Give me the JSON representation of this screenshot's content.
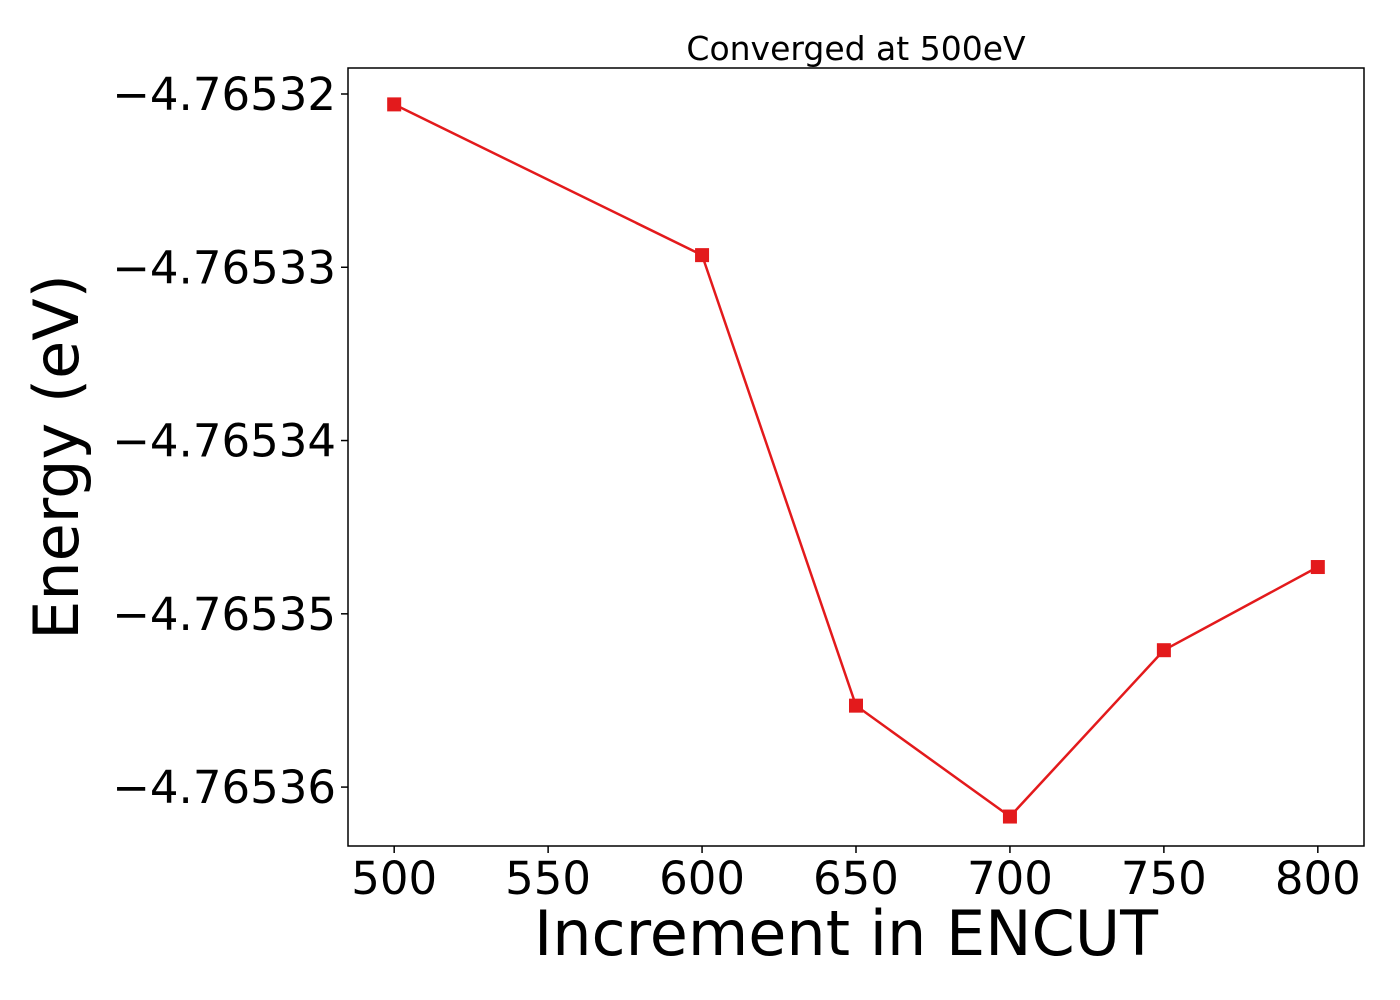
{
  "chart_data": {
    "type": "line",
    "title": "Converged at 500eV",
    "xlabel": "Increment in ENCUT",
    "ylabel": "Energy (eV)",
    "x": [
      500,
      600,
      650,
      700,
      750,
      800
    ],
    "series": [
      {
        "values": [
          -4.7653206,
          -4.7653293,
          -4.7653553,
          -4.7653617,
          -4.7653521,
          -4.7653473
        ],
        "color": "#e31a1c",
        "marker": "square"
      }
    ],
    "xlim": [
      485,
      815
    ],
    "ylim": [
      -4.7653634,
      -4.7653185
    ],
    "x_ticks": [
      500,
      550,
      600,
      650,
      700,
      750,
      800
    ],
    "x_tick_labels": [
      "500",
      "550",
      "600",
      "650",
      "700",
      "750",
      "800"
    ],
    "y_ticks": [
      -4.76532,
      -4.76533,
      -4.76534,
      -4.76535,
      -4.76536
    ],
    "y_tick_labels": [
      "−4.76532",
      "−4.76533",
      "−4.76534",
      "−4.76535",
      "−4.76536"
    ],
    "grid": false,
    "legend": "none"
  }
}
